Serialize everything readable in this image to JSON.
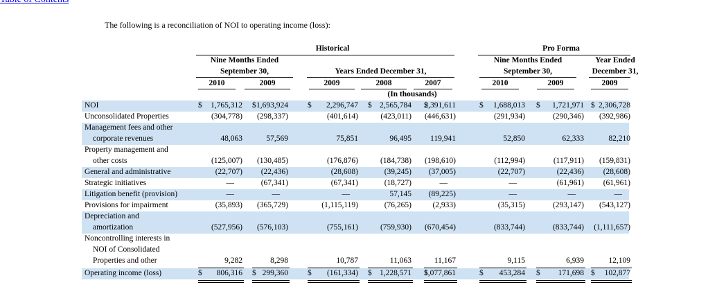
{
  "toc_link": "Table of Contents",
  "intro": "The following is a reconciliation of NOI to operating income (loss):",
  "headers": {
    "historical": "Historical",
    "pro_forma": "Pro Forma",
    "nine_months_ended": "Nine Months Ended",
    "september_30": "September 30,",
    "years_ended": "Years Ended December 31,",
    "pf_nine_months": "Nine Months Ended",
    "pf_september_30": "September 30,",
    "year_ended": "Year Ended",
    "december_31": "December 31,",
    "in_thousands": "(In thousands)",
    "years": [
      "2010",
      "2009",
      "2009",
      "2008",
      "2007",
      "2010",
      "2009",
      "2009"
    ]
  },
  "currency_symbol": "$",
  "rows": [
    {
      "label": "NOI",
      "values": [
        "1,765,312",
        "1,693,924",
        "2,296,747",
        "2,565,784",
        "2,391,611",
        "1,688,013",
        "1,721,971",
        "2,306,728"
      ]
    },
    {
      "label": "Unconsolidated Properties",
      "values": [
        "(304,778)",
        "(298,337)",
        "(401,614)",
        "(423,011)",
        "(446,631)",
        "(291,934)",
        "(290,346)",
        "(392,986)"
      ]
    },
    {
      "label": "Management fees and other",
      "values": []
    },
    {
      "label": "corporate revenues",
      "values": [
        "48,063",
        "57,569",
        "75,851",
        "96,495",
        "119,941",
        "52,850",
        "62,333",
        "82,210"
      ]
    },
    {
      "label": "Property management and",
      "values": []
    },
    {
      "label": "other costs",
      "values": [
        "(125,007)",
        "(130,485)",
        "(176,876)",
        "(184,738)",
        "(198,610)",
        "(112,994)",
        "(117,911)",
        "(159,831)"
      ]
    },
    {
      "label": "General and administrative",
      "values": [
        "(22,707)",
        "(22,436)",
        "(28,608)",
        "(39,245)",
        "(37,005)",
        "(22,707)",
        "(22,436)",
        "(28,608)"
      ]
    },
    {
      "label": "Strategic initiatives",
      "values": [
        "—",
        "(67,341)",
        "(67,341)",
        "(18,727)",
        "—",
        "—",
        "(61,961)",
        "(61,961)"
      ]
    },
    {
      "label": "Litigation benefit (provision)",
      "values": [
        "—",
        "—",
        "—",
        "57,145",
        "(89,225)",
        "—",
        "—",
        "—"
      ]
    },
    {
      "label": "Provisions for impairment",
      "values": [
        "(35,893)",
        "(365,729)",
        "(1,115,119)",
        "(76,265)",
        "(2,933)",
        "(35,315)",
        "(293,147)",
        "(543,127)"
      ]
    },
    {
      "label": "Depreciation and",
      "values": []
    },
    {
      "label": "amortization",
      "values": [
        "(527,956)",
        "(576,103)",
        "(755,161)",
        "(759,930)",
        "(670,454)",
        "(833,744)",
        "(833,744)",
        "(1,111,657)"
      ]
    },
    {
      "label": "Noncontrolling interests in",
      "values": []
    },
    {
      "label": "NOI of Consolidated",
      "values": []
    },
    {
      "label": "Properties and other",
      "values": [
        "9,282",
        "8,298",
        "10,787",
        "11,063",
        "11,167",
        "9,115",
        "6,939",
        "12,109"
      ]
    },
    {
      "label": "Operating income (loss)",
      "values": [
        "806,316",
        "299,360",
        "(161,334)",
        "1,228,571",
        "1,077,861",
        "453,284",
        "171,698",
        "102,877"
      ]
    }
  ]
}
